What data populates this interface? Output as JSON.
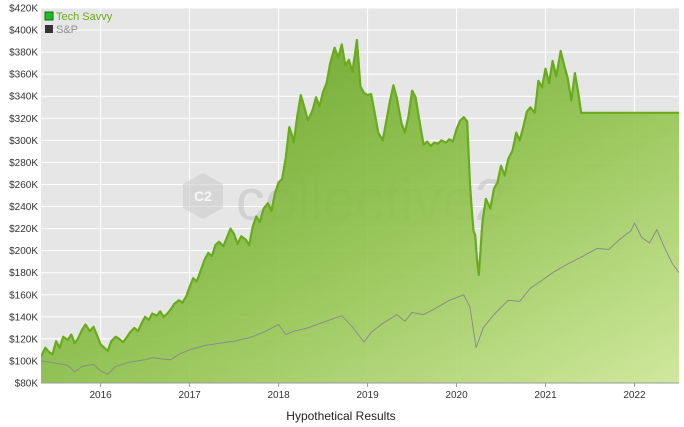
{
  "chart_data": {
    "type": "area",
    "title": "",
    "xlabel": "Hypothetical Results",
    "ylabel": "",
    "x_tick_labels": [
      "2016",
      "2017",
      "2018",
      "2019",
      "2020",
      "2021",
      "2022"
    ],
    "y_tick_labels": [
      "$80K",
      "$100K",
      "$120K",
      "$140K",
      "$160K",
      "$180K",
      "$200K",
      "$220K",
      "$240K",
      "$260K",
      "$280K",
      "$300K",
      "$320K",
      "$340K",
      "$360K",
      "$380K",
      "$400K",
      "$420K"
    ],
    "x_range": [
      2015.33,
      2022.5
    ],
    "ylim": [
      80000,
      420000
    ],
    "y_tick_step": 20000,
    "grid": true,
    "legend_position": "top-left",
    "watermark": "collective2",
    "watermark_logo": "C2",
    "series": [
      {
        "name": "Tech Savvy",
        "color": "#6aaa1e",
        "swatch_color": "#22bb22",
        "style": "area",
        "points": [
          [
            2015.33,
            104000
          ],
          [
            2015.38,
            112000
          ],
          [
            2015.42,
            108000
          ],
          [
            2015.46,
            106000
          ],
          [
            2015.5,
            118000
          ],
          [
            2015.54,
            112000
          ],
          [
            2015.58,
            122000
          ],
          [
            2015.63,
            119000
          ],
          [
            2015.67,
            124000
          ],
          [
            2015.71,
            116000
          ],
          [
            2015.75,
            121000
          ],
          [
            2015.79,
            128000
          ],
          [
            2015.83,
            133000
          ],
          [
            2015.88,
            127000
          ],
          [
            2015.92,
            131000
          ],
          [
            2015.96,
            123000
          ],
          [
            2016.0,
            115000
          ],
          [
            2016.04,
            112000
          ],
          [
            2016.08,
            109000
          ],
          [
            2016.12,
            118000
          ],
          [
            2016.17,
            122000
          ],
          [
            2016.21,
            120000
          ],
          [
            2016.25,
            117000
          ],
          [
            2016.29,
            121000
          ],
          [
            2016.33,
            126000
          ],
          [
            2016.38,
            130000
          ],
          [
            2016.42,
            127000
          ],
          [
            2016.46,
            134000
          ],
          [
            2016.5,
            140000
          ],
          [
            2016.54,
            137000
          ],
          [
            2016.58,
            143000
          ],
          [
            2016.63,
            141000
          ],
          [
            2016.67,
            145000
          ],
          [
            2016.71,
            140000
          ],
          [
            2016.75,
            143000
          ],
          [
            2016.79,
            147000
          ],
          [
            2016.83,
            152000
          ],
          [
            2016.88,
            155000
          ],
          [
            2016.92,
            153000
          ],
          [
            2016.96,
            158000
          ],
          [
            2017.0,
            167000
          ],
          [
            2017.04,
            175000
          ],
          [
            2017.08,
            172000
          ],
          [
            2017.12,
            181000
          ],
          [
            2017.17,
            192000
          ],
          [
            2017.21,
            198000
          ],
          [
            2017.25,
            195000
          ],
          [
            2017.29,
            205000
          ],
          [
            2017.33,
            208000
          ],
          [
            2017.38,
            204000
          ],
          [
            2017.42,
            212000
          ],
          [
            2017.46,
            220000
          ],
          [
            2017.5,
            215000
          ],
          [
            2017.54,
            206000
          ],
          [
            2017.58,
            213000
          ],
          [
            2017.63,
            210000
          ],
          [
            2017.67,
            205000
          ],
          [
            2017.71,
            222000
          ],
          [
            2017.75,
            231000
          ],
          [
            2017.79,
            226000
          ],
          [
            2017.83,
            238000
          ],
          [
            2017.88,
            243000
          ],
          [
            2017.92,
            236000
          ],
          [
            2017.96,
            252000
          ],
          [
            2018.0,
            262000
          ],
          [
            2018.04,
            265000
          ],
          [
            2018.08,
            284000
          ],
          [
            2018.12,
            312000
          ],
          [
            2018.15,
            305000
          ],
          [
            2018.17,
            298000
          ],
          [
            2018.21,
            322000
          ],
          [
            2018.25,
            341000
          ],
          [
            2018.29,
            330000
          ],
          [
            2018.33,
            318000
          ],
          [
            2018.38,
            327000
          ],
          [
            2018.42,
            339000
          ],
          [
            2018.46,
            331000
          ],
          [
            2018.5,
            344000
          ],
          [
            2018.54,
            352000
          ],
          [
            2018.58,
            370000
          ],
          [
            2018.63,
            384000
          ],
          [
            2018.67,
            375000
          ],
          [
            2018.71,
            387000
          ],
          [
            2018.75,
            368000
          ],
          [
            2018.79,
            373000
          ],
          [
            2018.83,
            362000
          ],
          [
            2018.88,
            391000
          ],
          [
            2018.92,
            349000
          ],
          [
            2018.96,
            343000
          ],
          [
            2019.0,
            341000
          ],
          [
            2019.04,
            342000
          ],
          [
            2019.08,
            325000
          ],
          [
            2019.12,
            307000
          ],
          [
            2019.17,
            300000
          ],
          [
            2019.21,
            317000
          ],
          [
            2019.25,
            335000
          ],
          [
            2019.29,
            350000
          ],
          [
            2019.33,
            338000
          ],
          [
            2019.38,
            316000
          ],
          [
            2019.42,
            307000
          ],
          [
            2019.46,
            322000
          ],
          [
            2019.5,
            345000
          ],
          [
            2019.54,
            339000
          ],
          [
            2019.58,
            319000
          ],
          [
            2019.63,
            296000
          ],
          [
            2019.67,
            299000
          ],
          [
            2019.71,
            295000
          ],
          [
            2019.75,
            298000
          ],
          [
            2019.79,
            297000
          ],
          [
            2019.83,
            300000
          ],
          [
            2019.88,
            298000
          ],
          [
            2019.92,
            301000
          ],
          [
            2019.96,
            299000
          ],
          [
            2020.0,
            310000
          ],
          [
            2020.04,
            318000
          ],
          [
            2020.08,
            321000
          ],
          [
            2020.12,
            317000
          ],
          [
            2020.15,
            262000
          ],
          [
            2020.17,
            238000
          ],
          [
            2020.19,
            218000
          ],
          [
            2020.21,
            214000
          ],
          [
            2020.23,
            192000
          ],
          [
            2020.25,
            178000
          ],
          [
            2020.27,
            201000
          ],
          [
            2020.29,
            226000
          ],
          [
            2020.33,
            247000
          ],
          [
            2020.38,
            238000
          ],
          [
            2020.42,
            256000
          ],
          [
            2020.46,
            262000
          ],
          [
            2020.5,
            277000
          ],
          [
            2020.54,
            268000
          ],
          [
            2020.58,
            283000
          ],
          [
            2020.63,
            291000
          ],
          [
            2020.67,
            307000
          ],
          [
            2020.71,
            300000
          ],
          [
            2020.75,
            312000
          ],
          [
            2020.79,
            326000
          ],
          [
            2020.83,
            330000
          ],
          [
            2020.88,
            325000
          ],
          [
            2020.92,
            354000
          ],
          [
            2020.96,
            348000
          ],
          [
            2021.0,
            365000
          ],
          [
            2021.04,
            352000
          ],
          [
            2021.08,
            372000
          ],
          [
            2021.12,
            358000
          ],
          [
            2021.17,
            381000
          ],
          [
            2021.21,
            368000
          ],
          [
            2021.25,
            356000
          ],
          [
            2021.29,
            336000
          ],
          [
            2021.33,
            361000
          ],
          [
            2021.37,
            342000
          ],
          [
            2021.4,
            325000
          ],
          [
            2021.5,
            325000
          ],
          [
            2022.5,
            325000
          ]
        ]
      },
      {
        "name": "S&P",
        "color": "#8c8c8c",
        "swatch_color": "#333333",
        "style": "line",
        "points": [
          [
            2015.33,
            100000
          ],
          [
            2015.5,
            98000
          ],
          [
            2015.63,
            96000
          ],
          [
            2015.71,
            90000
          ],
          [
            2015.79,
            95000
          ],
          [
            2015.92,
            97000
          ],
          [
            2016.0,
            91000
          ],
          [
            2016.08,
            88000
          ],
          [
            2016.17,
            95000
          ],
          [
            2016.33,
            99000
          ],
          [
            2016.5,
            101000
          ],
          [
            2016.58,
            103000
          ],
          [
            2016.67,
            102000
          ],
          [
            2016.79,
            101000
          ],
          [
            2016.88,
            106000
          ],
          [
            2017.0,
            110000
          ],
          [
            2017.17,
            114000
          ],
          [
            2017.33,
            116000
          ],
          [
            2017.5,
            118000
          ],
          [
            2017.67,
            121000
          ],
          [
            2017.83,
            126000
          ],
          [
            2018.0,
            133000
          ],
          [
            2018.08,
            124000
          ],
          [
            2018.17,
            127000
          ],
          [
            2018.33,
            130000
          ],
          [
            2018.5,
            135000
          ],
          [
            2018.71,
            141000
          ],
          [
            2018.83,
            131000
          ],
          [
            2018.96,
            117000
          ],
          [
            2019.04,
            126000
          ],
          [
            2019.17,
            134000
          ],
          [
            2019.33,
            142000
          ],
          [
            2019.42,
            136000
          ],
          [
            2019.5,
            144000
          ],
          [
            2019.63,
            142000
          ],
          [
            2019.75,
            147000
          ],
          [
            2019.92,
            155000
          ],
          [
            2020.08,
            160000
          ],
          [
            2020.15,
            149000
          ],
          [
            2020.22,
            112000
          ],
          [
            2020.3,
            130000
          ],
          [
            2020.42,
            142000
          ],
          [
            2020.58,
            155000
          ],
          [
            2020.71,
            154000
          ],
          [
            2020.83,
            166000
          ],
          [
            2020.96,
            173000
          ],
          [
            2021.08,
            180000
          ],
          [
            2021.25,
            188000
          ],
          [
            2021.42,
            195000
          ],
          [
            2021.58,
            202000
          ],
          [
            2021.71,
            201000
          ],
          [
            2021.83,
            210000
          ],
          [
            2021.96,
            218000
          ],
          [
            2022.0,
            225000
          ],
          [
            2022.08,
            212000
          ],
          [
            2022.17,
            207000
          ],
          [
            2022.25,
            219000
          ],
          [
            2022.33,
            204000
          ],
          [
            2022.42,
            189000
          ],
          [
            2022.5,
            180000
          ]
        ]
      }
    ]
  }
}
